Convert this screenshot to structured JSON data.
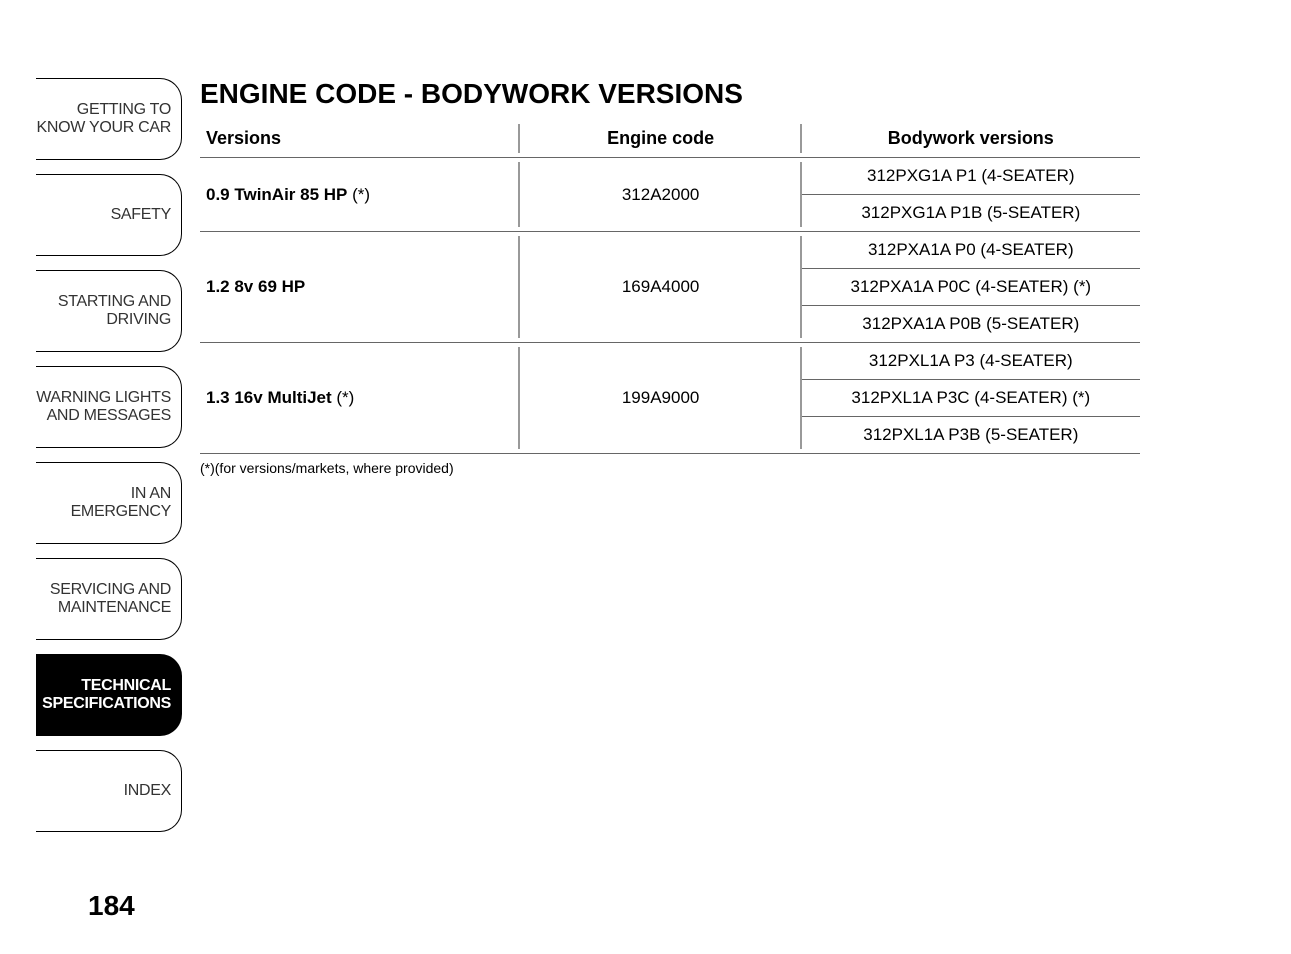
{
  "sidebar": {
    "tabs": [
      {
        "label": "GETTING TO KNOW YOUR CAR",
        "active": false
      },
      {
        "label": "SAFETY",
        "active": false
      },
      {
        "label": "STARTING AND DRIVING",
        "active": false
      },
      {
        "label": "WARNING LIGHTS AND MESSAGES",
        "active": false
      },
      {
        "label": "IN AN EMERGENCY",
        "active": false
      },
      {
        "label": "SERVICING AND MAINTENANCE",
        "active": false
      },
      {
        "label": "TECHNICAL SPECIFICATIONS",
        "active": true
      },
      {
        "label": "INDEX",
        "active": false
      }
    ]
  },
  "page_number": "184",
  "content": {
    "title": "ENGINE CODE - BODYWORK VERSIONS",
    "table": {
      "columns": {
        "versions": "Versions",
        "engine": "Engine code",
        "bodywork": "Bodywork versions"
      },
      "groups": [
        {
          "version": "0.9 TwinAir 85 HP",
          "version_suffix": " (*)",
          "engine": "312A2000",
          "bodywork": [
            "312PXG1A P1 (4-SEATER)",
            "312PXG1A P1B (5-SEATER)"
          ]
        },
        {
          "version": "1.2 8v 69 HP",
          "version_suffix": "",
          "engine": "169A4000",
          "bodywork": [
            "312PXA1A P0 (4-SEATER)",
            "312PXA1A P0C (4-SEATER) (*)",
            "312PXA1A P0B (5-SEATER)"
          ]
        },
        {
          "version": "1.3 16v MultiJet",
          "version_suffix": " (*)",
          "engine": "199A9000",
          "bodywork": [
            "312PXL1A P3 (4-SEATER)",
            "312PXL1A P3C (4-SEATER) (*)",
            "312PXL1A P3B (5-SEATER)"
          ]
        }
      ]
    },
    "footnote": "(*)(for versions/markets, where provided)"
  },
  "styling": {
    "page_bg": "#ffffff",
    "text_color": "#000000",
    "tab_border": "#000000",
    "tab_active_bg": "#000000",
    "tab_active_fg": "#ffffff",
    "table_border": "#666666",
    "vsep_color": "#999999",
    "title_fontsize": 28,
    "th_fontsize": 18,
    "td_fontsize": 17,
    "footnote_fontsize": 14,
    "page_number_fontsize": 28
  }
}
